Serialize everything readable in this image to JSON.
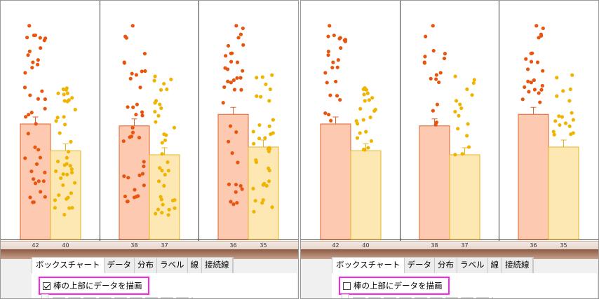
{
  "colors": {
    "bar1_fill": "#fdc9b0",
    "bar1_stroke": "#e0622a",
    "dot1": "#e8550f",
    "bar2_fill": "#fde8b4",
    "bar2_stroke": "#e8b21c",
    "dot2": "#f0b400",
    "highlight": "#ff22ee"
  },
  "panels": [
    {
      "id": "left",
      "tabs": [
        "ボックスチャート",
        "データ",
        "分布",
        "ラベル",
        "線",
        "接続線"
      ],
      "checkbox": {
        "label": "棒の上部にデータを描画",
        "checked": true
      }
    },
    {
      "id": "right",
      "tabs": [
        "ボックスチャート",
        "データ",
        "分布",
        "ラベル",
        "線",
        "接続線"
      ],
      "checkbox": {
        "label": "棒の上部にデータを描画",
        "checked": false
      }
    }
  ],
  "chart_data": [
    {
      "type": "bar",
      "panel": "left",
      "dots_shown": "all",
      "groups": [
        {
          "counts": [
            42,
            40
          ],
          "values": [
            3.0,
            2.3
          ]
        },
        {
          "counts": [
            38,
            37
          ],
          "values": [
            2.95,
            2.2
          ]
        },
        {
          "counts": [
            36,
            35
          ],
          "values": [
            3.25,
            2.4
          ]
        }
      ]
    },
    {
      "type": "bar",
      "panel": "right",
      "dots_shown": "above-bar",
      "groups": [
        {
          "counts": [
            42,
            40
          ],
          "values": [
            3.0,
            2.3
          ]
        },
        {
          "counts": [
            38,
            37
          ],
          "values": [
            2.95,
            2.2
          ]
        },
        {
          "counts": [
            36,
            35
          ],
          "values": [
            3.25,
            2.4
          ]
        }
      ]
    }
  ]
}
